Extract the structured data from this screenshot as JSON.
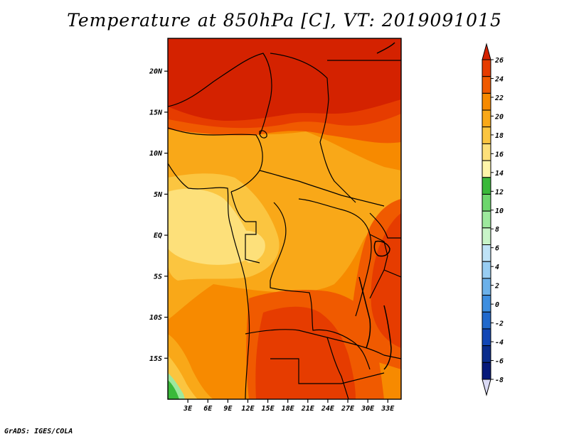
{
  "title": "Temperature at 850hPa [C], VT: 2019091015",
  "credit": "GrADS: IGES/COLA",
  "map": {
    "lon_range": [
      0,
      35
    ],
    "lat_range": [
      -20,
      24
    ],
    "lat_ticks": [
      {
        "value": 20,
        "label": "20N"
      },
      {
        "value": 15,
        "label": "15N"
      },
      {
        "value": 10,
        "label": "10N"
      },
      {
        "value": 5,
        "label": "5N"
      },
      {
        "value": 0,
        "label": "EQ"
      },
      {
        "value": -5,
        "label": "5S"
      },
      {
        "value": -10,
        "label": "10S"
      },
      {
        "value": -15,
        "label": "15S"
      }
    ],
    "lon_ticks": [
      {
        "value": 3,
        "label": "3E"
      },
      {
        "value": 6,
        "label": "6E"
      },
      {
        "value": 9,
        "label": "9E"
      },
      {
        "value": 12,
        "label": "12E"
      },
      {
        "value": 15,
        "label": "15E"
      },
      {
        "value": 18,
        "label": "18E"
      },
      {
        "value": 21,
        "label": "21E"
      },
      {
        "value": 24,
        "label": "24E"
      },
      {
        "value": 27,
        "label": "27E"
      },
      {
        "value": 30,
        "label": "30E"
      },
      {
        "value": 33,
        "label": "33E"
      }
    ]
  },
  "colorbar": {
    "levels": [
      "26",
      "24",
      "22",
      "20",
      "18",
      "16",
      "14",
      "12",
      "10",
      "8",
      "6",
      "4",
      "2",
      "0",
      "-2",
      "-4",
      "-6",
      "-8"
    ],
    "colors": [
      "#d42200",
      "#e63c00",
      "#f05a00",
      "#f78a00",
      "#f9a818",
      "#fbc540",
      "#fde07a",
      "#fef5aa",
      "#3ab93a",
      "#6dd66d",
      "#9de89d",
      "#c8f4c8",
      "#bfe3f7",
      "#98cdf2",
      "#6cb1ea",
      "#3d8ee0",
      "#2169cc",
      "#1146b5",
      "#0a2c8c",
      "#06197a",
      "#dadaf5"
    ]
  },
  "colors": {
    "t26": "#d42200",
    "t24": "#e63c00",
    "t22": "#f05a00",
    "t20": "#f78a00",
    "t18": "#f9a818",
    "t16": "#fbc540",
    "t14": "#fde07a",
    "t12": "#fef5aa",
    "green": "#3ab93a",
    "light_green": "#9de89d"
  }
}
